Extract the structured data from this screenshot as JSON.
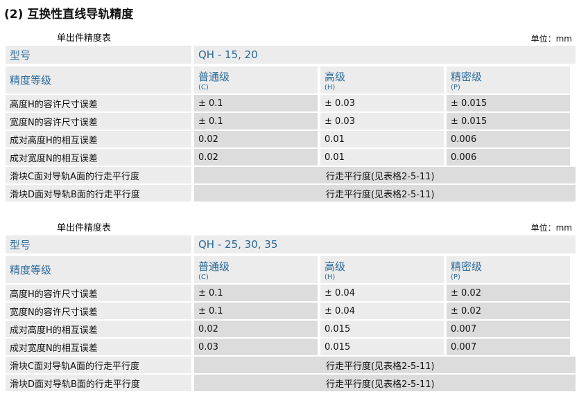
{
  "title": "(2) 互换性直线导轨精度",
  "tables": [
    {
      "subtitle": "单出件精度表",
      "unit": "单位：mm",
      "model_label": "型号",
      "model": "QH - 15, 20",
      "grade_label": "精度等级",
      "grades": [
        {
          "name": "普通级",
          "code": "(C)"
        },
        {
          "name": "高级",
          "code": "(H)"
        },
        {
          "name": "精密级",
          "code": "(P)"
        }
      ],
      "rows": [
        {
          "label": "高度H的容许尺寸误差",
          "values": [
            "± 0.1",
            "± 0.03",
            "± 0.015"
          ]
        },
        {
          "label": "宽度N的容许尺寸误差",
          "values": [
            "± 0.1",
            "± 0.03",
            "± 0.015"
          ]
        },
        {
          "label": "成对高度H的相互误差",
          "values": [
            "0.02",
            "0.01",
            "0.006"
          ]
        },
        {
          "label": "成对宽度N的相互误差",
          "values": [
            "0.02",
            "0.01",
            "0.006"
          ]
        }
      ],
      "span_rows": [
        {
          "label": "滑块C面对导轨A面的行走平行度",
          "value": "行走平行度(见表格2-5-11)"
        },
        {
          "label": "滑块D面对导轨B面的行走平行度",
          "value": "行走平行度(见表格2-5-11)"
        }
      ]
    },
    {
      "subtitle": "单出件精度表",
      "unit": "单位：mm",
      "model_label": "型号",
      "model": "QH - 25, 30, 35",
      "grade_label": "精度等级",
      "grades": [
        {
          "name": "普通级",
          "code": "(C)"
        },
        {
          "name": "高级",
          "code": "(H)"
        },
        {
          "name": "精密级",
          "code": "(P)"
        }
      ],
      "rows": [
        {
          "label": "高度H的容许尺寸误差",
          "values": [
            "± 0.1",
            "± 0.04",
            "± 0.02"
          ]
        },
        {
          "label": "宽度N的容许尺寸误差",
          "values": [
            "± 0.1",
            "± 0.04",
            "± 0.02"
          ]
        },
        {
          "label": "成对高度H的相互误差",
          "values": [
            "0.02",
            "0.015",
            "0.007"
          ]
        },
        {
          "label": "成对宽度N的相互误差",
          "values": [
            "0.03",
            "0.015",
            "0.007"
          ]
        }
      ],
      "span_rows": [
        {
          "label": "滑块C面对导轨A面的行走平行度",
          "value": "行走平行度(见表格2-5-11)"
        },
        {
          "label": "滑块D面对导轨B面的行走平行度",
          "value": "行走平行度(见表格2-5-11)"
        }
      ]
    }
  ]
}
